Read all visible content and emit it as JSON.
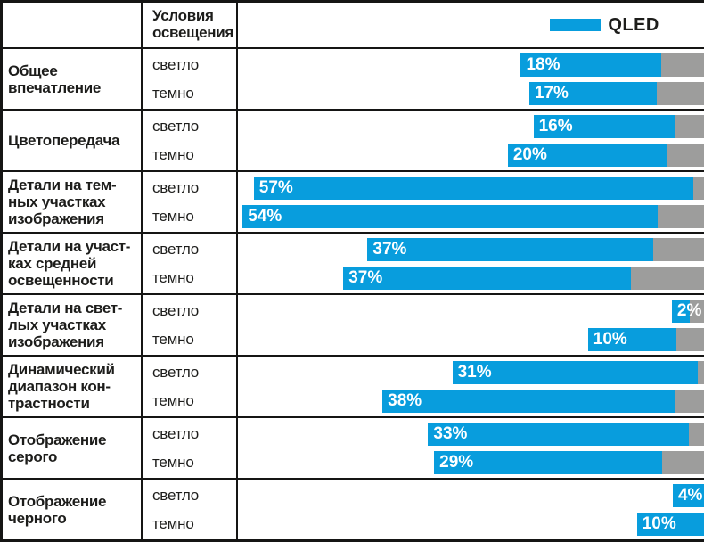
{
  "header": {
    "conditions_title": "Условия\nосвещения",
    "legend": {
      "label": "QLED"
    }
  },
  "labels": {
    "light": "светло",
    "dark": "темно"
  },
  "colors": {
    "qled_blue": "#089ddd",
    "remainder_gray": "#9d9d9c",
    "border_black": "#151514",
    "text_dark": "#1d1d1b",
    "bar_label_white": "#ffffff"
  },
  "chart_data": {
    "type": "bar",
    "orientation": "horizontal",
    "value_unit": "%",
    "legend": [
      "QLED"
    ],
    "legend_position": "top-right",
    "conditions": [
      "светло",
      "темно"
    ],
    "categories": [
      "Общее впечатление",
      "Цветопередача",
      "Детали на темных участках изображения",
      "Детали на участках средней освещенности",
      "Детали на светлых участках изображения",
      "Динамический диапазон контрастности",
      "Отображение серого",
      "Отображение черного"
    ],
    "series": [
      {
        "name": "светло",
        "values": [
          18,
          16,
          57,
          37,
          2,
          31,
          33,
          4
        ]
      },
      {
        "name": "темно",
        "values": [
          17,
          20,
          54,
          37,
          10,
          38,
          29,
          10
        ]
      }
    ],
    "rows": [
      {
        "category": "Общее\nвпечатление",
        "light": {
          "value": 18,
          "label": "18%",
          "start_pct": 60.7,
          "end_pct": 90.8
        },
        "dark": {
          "value": 17,
          "label": "17%",
          "start_pct": 62.5,
          "end_pct": 89.8
        }
      },
      {
        "category": "Цветопередача",
        "light": {
          "value": 16,
          "label": "16%",
          "start_pct": 63.4,
          "end_pct": 93.7
        },
        "dark": {
          "value": 20,
          "label": "20%",
          "start_pct": 57.9,
          "end_pct": 92.0
        }
      },
      {
        "category": "Детали на тем-\nных участках\nизображения",
        "light": {
          "value": 57,
          "label": "57%",
          "start_pct": 3.4,
          "end_pct": 97.7
        },
        "dark": {
          "value": 54,
          "label": "54%",
          "start_pct": 1.0,
          "end_pct": 90.0
        }
      },
      {
        "category": "Детали на участ-\nках средней\nосвещенности",
        "light": {
          "value": 37,
          "label": "37%",
          "start_pct": 27.8,
          "end_pct": 89.1
        },
        "dark": {
          "value": 37,
          "label": "37%",
          "start_pct": 22.6,
          "end_pct": 84.3
        }
      },
      {
        "category": "Детали на свет-\nлых участках\nизображения",
        "light": {
          "value": 2,
          "label": "2%",
          "start_pct": 93.1,
          "end_pct": 96.9
        },
        "dark": {
          "value": 10,
          "label": "10%",
          "start_pct": 75.1,
          "end_pct": 94.1
        }
      },
      {
        "category": "Динамический\nдиапазон кон-\nтрастности",
        "light": {
          "value": 31,
          "label": "31%",
          "start_pct": 46.0,
          "end_pct": 98.7
        },
        "dark": {
          "value": 38,
          "label": "38%",
          "start_pct": 31.0,
          "end_pct": 93.9
        }
      },
      {
        "category": "Отображение\nсерого",
        "light": {
          "value": 33,
          "label": "33%",
          "start_pct": 40.8,
          "end_pct": 96.7
        },
        "dark": {
          "value": 29,
          "label": "29%",
          "start_pct": 42.1,
          "end_pct": 91.0
        }
      },
      {
        "category": "Отображение\nчерного",
        "light": {
          "value": 4,
          "label": "4%",
          "start_pct": 93.3,
          "end_pct": 100
        },
        "dark": {
          "value": 10,
          "label": "10%",
          "start_pct": 85.6,
          "end_pct": 100
        }
      }
    ]
  }
}
